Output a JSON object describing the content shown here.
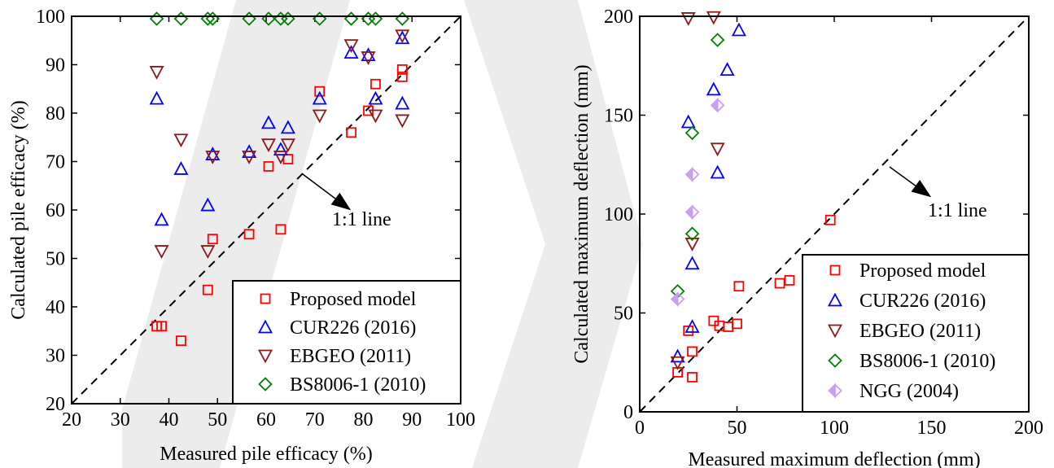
{
  "watermark_color": "#ececec",
  "chart_data": [
    {
      "type": "scatter",
      "xlabel": "Measured pile efficacy (%)",
      "ylabel": "Calculated pile efficacy (%)",
      "xlim": [
        20,
        100
      ],
      "ylim": [
        20,
        100
      ],
      "xticks": [
        20,
        30,
        40,
        50,
        60,
        70,
        80,
        90,
        100
      ],
      "yticks": [
        20,
        30,
        40,
        50,
        60,
        70,
        80,
        90,
        100
      ],
      "grid": false,
      "legend_position": "bottom-right",
      "reference_line": {
        "label": "1:1 line",
        "from": [
          20,
          20
        ],
        "to": [
          100,
          100
        ],
        "style": "dashed"
      },
      "series": [
        {
          "name": "Proposed model",
          "marker": "square",
          "color": "#ff0000",
          "points": [
            [
              37.5,
              36
            ],
            [
              38.5,
              36
            ],
            [
              42.5,
              33
            ],
            [
              48,
              43.5
            ],
            [
              49,
              54
            ],
            [
              56.5,
              55
            ],
            [
              60.5,
              69
            ],
            [
              63,
              56
            ],
            [
              64.5,
              70.5
            ],
            [
              71,
              84.5
            ],
            [
              77.5,
              76
            ],
            [
              81,
              80.5
            ],
            [
              82.5,
              86
            ],
            [
              88,
              89
            ],
            [
              88,
              87.5
            ]
          ]
        },
        {
          "name": "CUR226 (2016)",
          "marker": "triangle-up",
          "color": "#0000ff",
          "points": [
            [
              37.5,
              83
            ],
            [
              38.5,
              58
            ],
            [
              42.5,
              68.5
            ],
            [
              48,
              61
            ],
            [
              49,
              71.5
            ],
            [
              56.5,
              72
            ],
            [
              60.5,
              78
            ],
            [
              63,
              72.5
            ],
            [
              64.5,
              77
            ],
            [
              71,
              83
            ],
            [
              77.5,
              92.5
            ],
            [
              81,
              92
            ],
            [
              82.5,
              83
            ],
            [
              88,
              95.5
            ],
            [
              88,
              82
            ]
          ]
        },
        {
          "name": "EBGEO (2011)",
          "marker": "triangle-down",
          "color": "#8b1a1a",
          "points": [
            [
              37.5,
              88.5
            ],
            [
              38.5,
              51.5
            ],
            [
              42.5,
              74.5
            ],
            [
              48,
              51.5
            ],
            [
              49,
              71
            ],
            [
              56.5,
              71
            ],
            [
              60.5,
              73.5
            ],
            [
              63,
              71
            ],
            [
              64.5,
              73.5
            ],
            [
              71,
              79.5
            ],
            [
              77.5,
              94
            ],
            [
              81,
              91.5
            ],
            [
              82.5,
              79.5
            ],
            [
              88,
              96
            ],
            [
              88,
              78.5
            ]
          ]
        },
        {
          "name": "BS8006-1 (2010)",
          "marker": "diamond",
          "color": "#008000",
          "points": [
            [
              37.5,
              99.5
            ],
            [
              42.5,
              99.5
            ],
            [
              48,
              99.5
            ],
            [
              49,
              99.5
            ],
            [
              56.5,
              99.5
            ],
            [
              60.5,
              99.5
            ],
            [
              63,
              99.5
            ],
            [
              64.5,
              99.5
            ],
            [
              71,
              99.5
            ],
            [
              77.5,
              99.5
            ],
            [
              81,
              99.5
            ],
            [
              82.5,
              99.5
            ],
            [
              88,
              99.5
            ]
          ]
        }
      ]
    },
    {
      "type": "scatter",
      "xlabel": "Measured maximum deflection (mm)",
      "ylabel": "Calculated maximum deflection (mm)",
      "xlim": [
        0,
        200
      ],
      "ylim": [
        0,
        200
      ],
      "xticks": [
        0,
        50,
        100,
        150,
        200
      ],
      "yticks": [
        0,
        50,
        100,
        150,
        200
      ],
      "grid": false,
      "legend_position": "bottom-right",
      "reference_line": {
        "label": "1:1 line",
        "from": [
          0,
          0
        ],
        "to": [
          200,
          200
        ],
        "style": "dashed"
      },
      "series": [
        {
          "name": "Proposed model",
          "marker": "square",
          "color": "#ff0000",
          "points": [
            [
              19.5,
              20
            ],
            [
              25,
              41
            ],
            [
              27,
              30.5
            ],
            [
              27,
              17.5
            ],
            [
              38,
              46
            ],
            [
              41,
              43.5
            ],
            [
              45.5,
              43
            ],
            [
              50,
              44.5
            ],
            [
              51,
              63.5
            ],
            [
              72,
              65
            ],
            [
              77,
              66.5
            ],
            [
              98,
              97
            ]
          ]
        },
        {
          "name": "CUR226 (2016)",
          "marker": "triangle-up",
          "color": "#0000ff",
          "points": [
            [
              19.5,
              28
            ],
            [
              27,
              43
            ],
            [
              27,
              75
            ],
            [
              25,
              146.5
            ],
            [
              38,
              163
            ],
            [
              40,
              121
            ],
            [
              45,
              173
            ],
            [
              51,
              193
            ]
          ]
        },
        {
          "name": "EBGEO (2011)",
          "marker": "triangle-down",
          "color": "#8b1a1a",
          "points": [
            [
              19.5,
              25
            ],
            [
              27,
              85
            ],
            [
              25,
              199
            ],
            [
              38,
              199.5
            ],
            [
              40,
              133
            ]
          ]
        },
        {
          "name": "BS8006-1 (2010)",
          "marker": "diamond",
          "color": "#008000",
          "points": [
            [
              19.5,
              61
            ],
            [
              27,
              90
            ],
            [
              27,
              141
            ],
            [
              40,
              188
            ]
          ]
        },
        {
          "name": "NGG (2004)",
          "marker": "half-diamond",
          "color": "#c9a0f0",
          "points": [
            [
              19.5,
              57
            ],
            [
              27,
              101
            ],
            [
              27,
              120
            ],
            [
              40,
              155
            ]
          ]
        }
      ]
    }
  ]
}
